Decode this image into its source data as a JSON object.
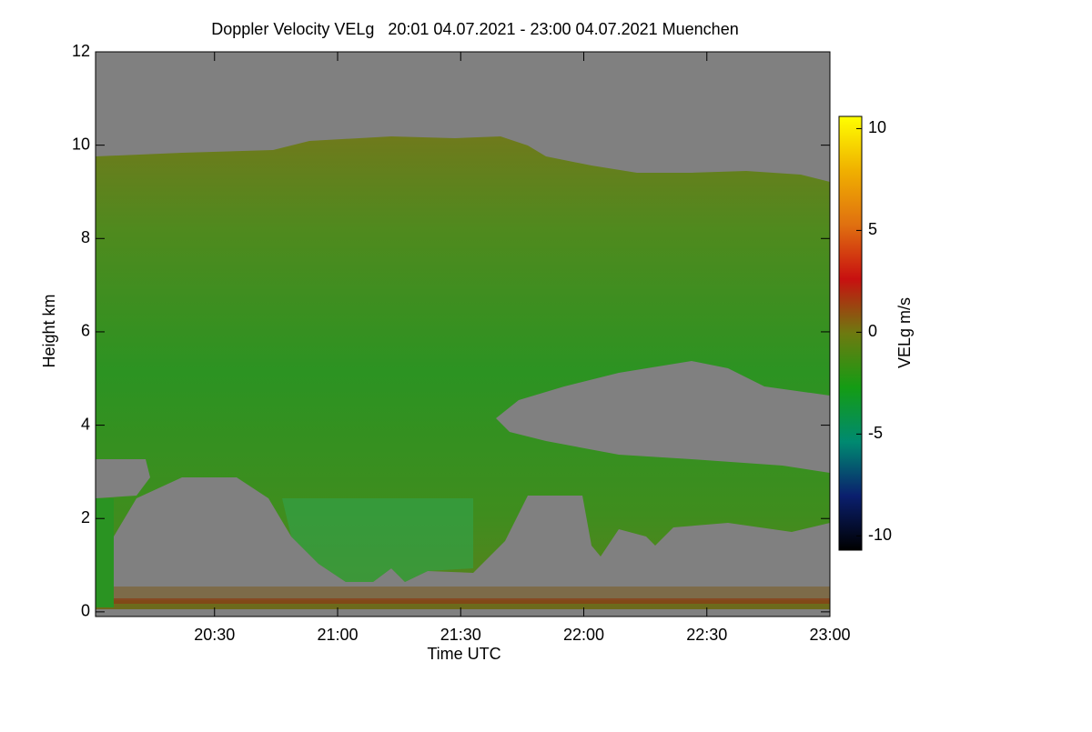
{
  "chart_data": {
    "type": "heatmap",
    "title": "Doppler Velocity VELg   20:01 04.07.2021 - 23:00 04.07.2021 Muenchen",
    "x_label": "Time UTC",
    "y_label": "Height km",
    "colorbar_label": "VELg m/s",
    "xlim": [
      "20:01",
      "23:00"
    ],
    "xticks": [
      "20:30",
      "21:00",
      "21:30",
      "22:00",
      "22:30",
      "23:00"
    ],
    "ylim": [
      -0.1,
      12
    ],
    "yticks": [
      0,
      2,
      4,
      6,
      8,
      10,
      12
    ],
    "clim": [
      -10.7,
      10.6
    ],
    "cticks": [
      -10,
      -5,
      0,
      5,
      10
    ],
    "colormap": [
      "#000000",
      "#0a1f6e",
      "#008a70",
      "#149c14",
      "#6e7a10",
      "#c81010",
      "#e07010",
      "#f0b000",
      "#ffff00"
    ]
  }
}
